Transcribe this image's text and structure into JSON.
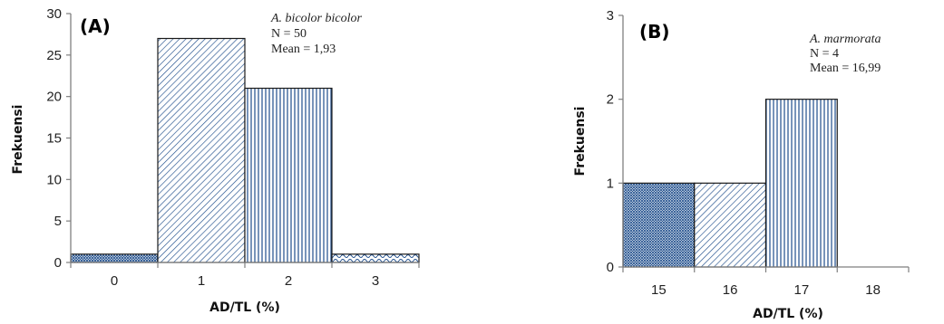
{
  "colors": {
    "bar_fill": "#1f4e8c",
    "axis": "#7f7f7f",
    "bar_stroke": "#1a1a1a"
  },
  "chart_data": [
    {
      "type": "bar",
      "panel_label": "(A)",
      "categories": [
        "0",
        "1",
        "2",
        "3"
      ],
      "values": [
        1,
        27,
        21,
        1
      ],
      "patterns": [
        "cross-hatch",
        "diagonal",
        "vertical",
        "wave"
      ],
      "xlabel": "AD/TL (%)",
      "ylabel": "Frekuensi",
      "ylim": [
        0,
        30
      ],
      "yticks": [
        "0",
        "5",
        "10",
        "15",
        "20",
        "25",
        "30"
      ],
      "annotations": [
        "A. bicolor bicolor",
        "N = 50",
        "Mean = 1,93"
      ],
      "grid": false
    },
    {
      "type": "bar",
      "panel_label": "(B)",
      "categories": [
        "15",
        "16",
        "17",
        "18"
      ],
      "values": [
        1,
        1,
        2,
        0
      ],
      "patterns": [
        "cross-hatch",
        "diagonal",
        "vertical",
        "none"
      ],
      "xlabel": "AD/TL (%)",
      "ylabel": "Frekuensi",
      "ylim": [
        0,
        3
      ],
      "yticks": [
        "0",
        "1",
        "2",
        "3"
      ],
      "annotations": [
        "A. marmorata",
        "N = 4",
        "Mean = 16,99"
      ],
      "grid": false
    }
  ]
}
